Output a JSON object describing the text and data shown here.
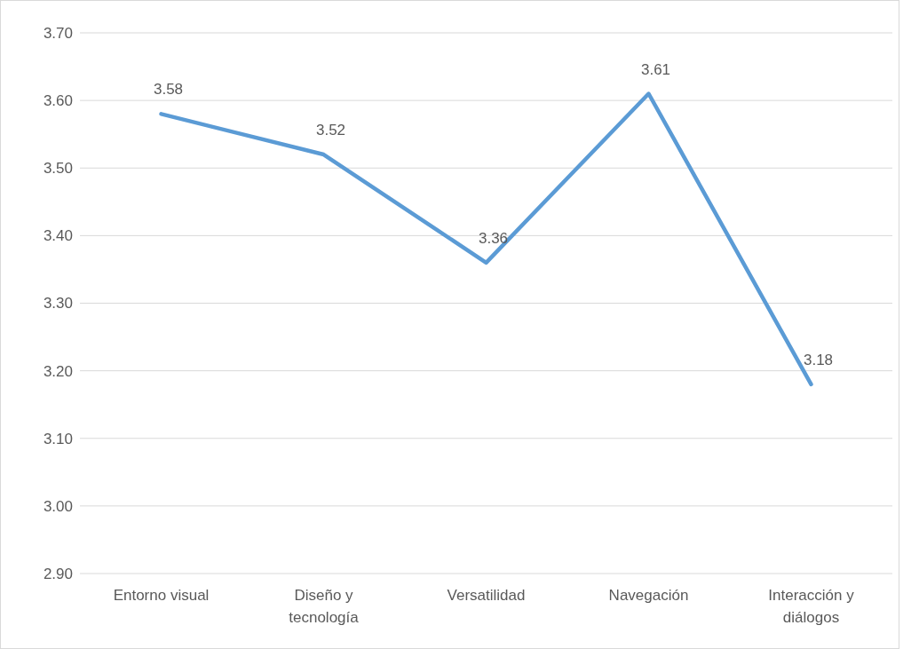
{
  "chart_data": {
    "type": "line",
    "categories": [
      "Entorno visual",
      "Diseño y tecnología",
      "Versatilidad",
      "Navegación",
      "Interacción y diálogos"
    ],
    "series": [
      {
        "color": "#5b9bd5",
        "values": [
          3.58,
          3.52,
          3.36,
          3.61,
          3.18
        ]
      }
    ],
    "ylim": [
      2.9,
      3.7
    ],
    "yticks": [
      {
        "value": 2.9,
        "label": "2.90"
      },
      {
        "value": 3.0,
        "label": "3.00"
      },
      {
        "value": 3.1,
        "label": "3.10"
      },
      {
        "value": 3.2,
        "label": "3.20"
      },
      {
        "value": 3.3,
        "label": "3.30"
      },
      {
        "value": 3.4,
        "label": "3.40"
      },
      {
        "value": 3.5,
        "label": "3.50"
      },
      {
        "value": 3.6,
        "label": "3.60"
      },
      {
        "value": 3.7,
        "label": "3.70"
      }
    ],
    "grid": "y",
    "data_labels": true,
    "marker": "none",
    "line_style": "solid"
  }
}
